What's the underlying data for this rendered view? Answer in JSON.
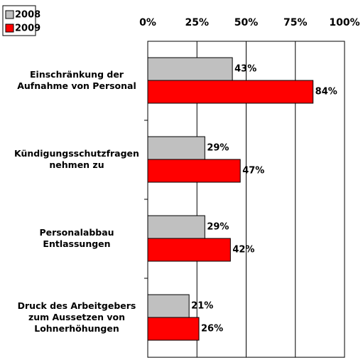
{
  "chart_data": {
    "type": "hbar",
    "categories": [
      "Einschränkung der\nAufnahme von Personal",
      "Kündigungsschutzfragen\nnehmen zu",
      "Personalabbau\nEntlassungen",
      "Druck des Arbeitgebers\nzum Aussetzen von\nLohnerhöhungen"
    ],
    "series": [
      {
        "name": "2008",
        "color": "#c0c0c0",
        "values": [
          43,
          29,
          29,
          21
        ],
        "value_labels": [
          "43%",
          "29%",
          "29%",
          "21%"
        ]
      },
      {
        "name": "2009",
        "color": "#ff0000",
        "values": [
          84,
          47,
          42,
          26
        ],
        "value_labels": [
          "84%",
          "47%",
          "42%",
          "26%"
        ]
      }
    ],
    "xlim": [
      0,
      100
    ],
    "xticks": [
      {
        "value": 0,
        "label": "0%"
      },
      {
        "value": 25,
        "label": "25%"
      },
      {
        "value": 50,
        "label": "50%"
      },
      {
        "value": 75,
        "label": "75%"
      },
      {
        "value": 100,
        "label": "100%"
      }
    ],
    "grid": true,
    "legend": "top-left"
  }
}
